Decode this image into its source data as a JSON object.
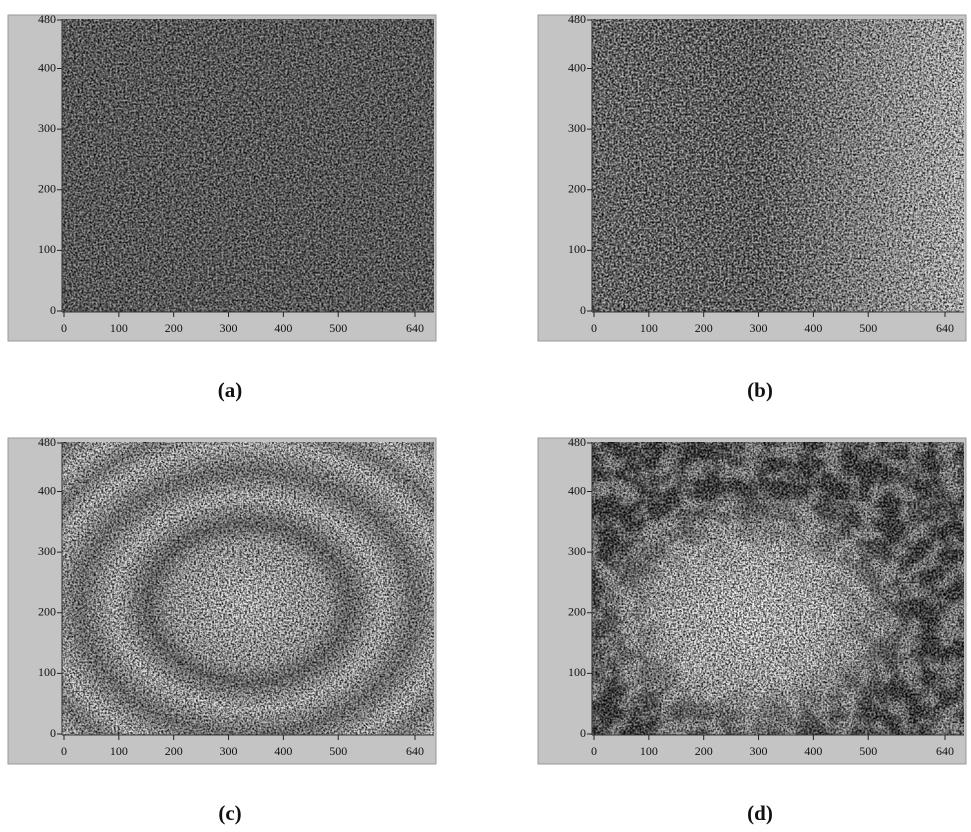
{
  "chart_data": [
    {
      "type": "image",
      "caption": "(a)",
      "xlim": [
        0,
        640
      ],
      "ylim": [
        0,
        480
      ],
      "xticks": [
        0,
        100,
        200,
        300,
        400,
        500,
        640
      ],
      "yticks": [
        0,
        100,
        200,
        300,
        400,
        480
      ]
    },
    {
      "type": "image",
      "caption": "(b)",
      "xlim": [
        0,
        640
      ],
      "ylim": [
        0,
        480
      ],
      "xticks": [
        0,
        100,
        200,
        300,
        400,
        500,
        640
      ],
      "yticks": [
        0,
        100,
        200,
        300,
        400,
        480
      ]
    },
    {
      "type": "image",
      "caption": "(c)",
      "xlim": [
        0,
        640
      ],
      "ylim": [
        0,
        480
      ],
      "xticks": [
        0,
        100,
        200,
        300,
        400,
        500,
        640
      ],
      "yticks": [
        0,
        100,
        200,
        300,
        400,
        480
      ]
    },
    {
      "type": "image",
      "caption": "(d)",
      "xlim": [
        0,
        640
      ],
      "ylim": [
        0,
        480
      ],
      "xticks": [
        0,
        100,
        200,
        300,
        400,
        500,
        640
      ],
      "yticks": [
        0,
        100,
        200,
        300,
        400,
        480
      ]
    }
  ]
}
